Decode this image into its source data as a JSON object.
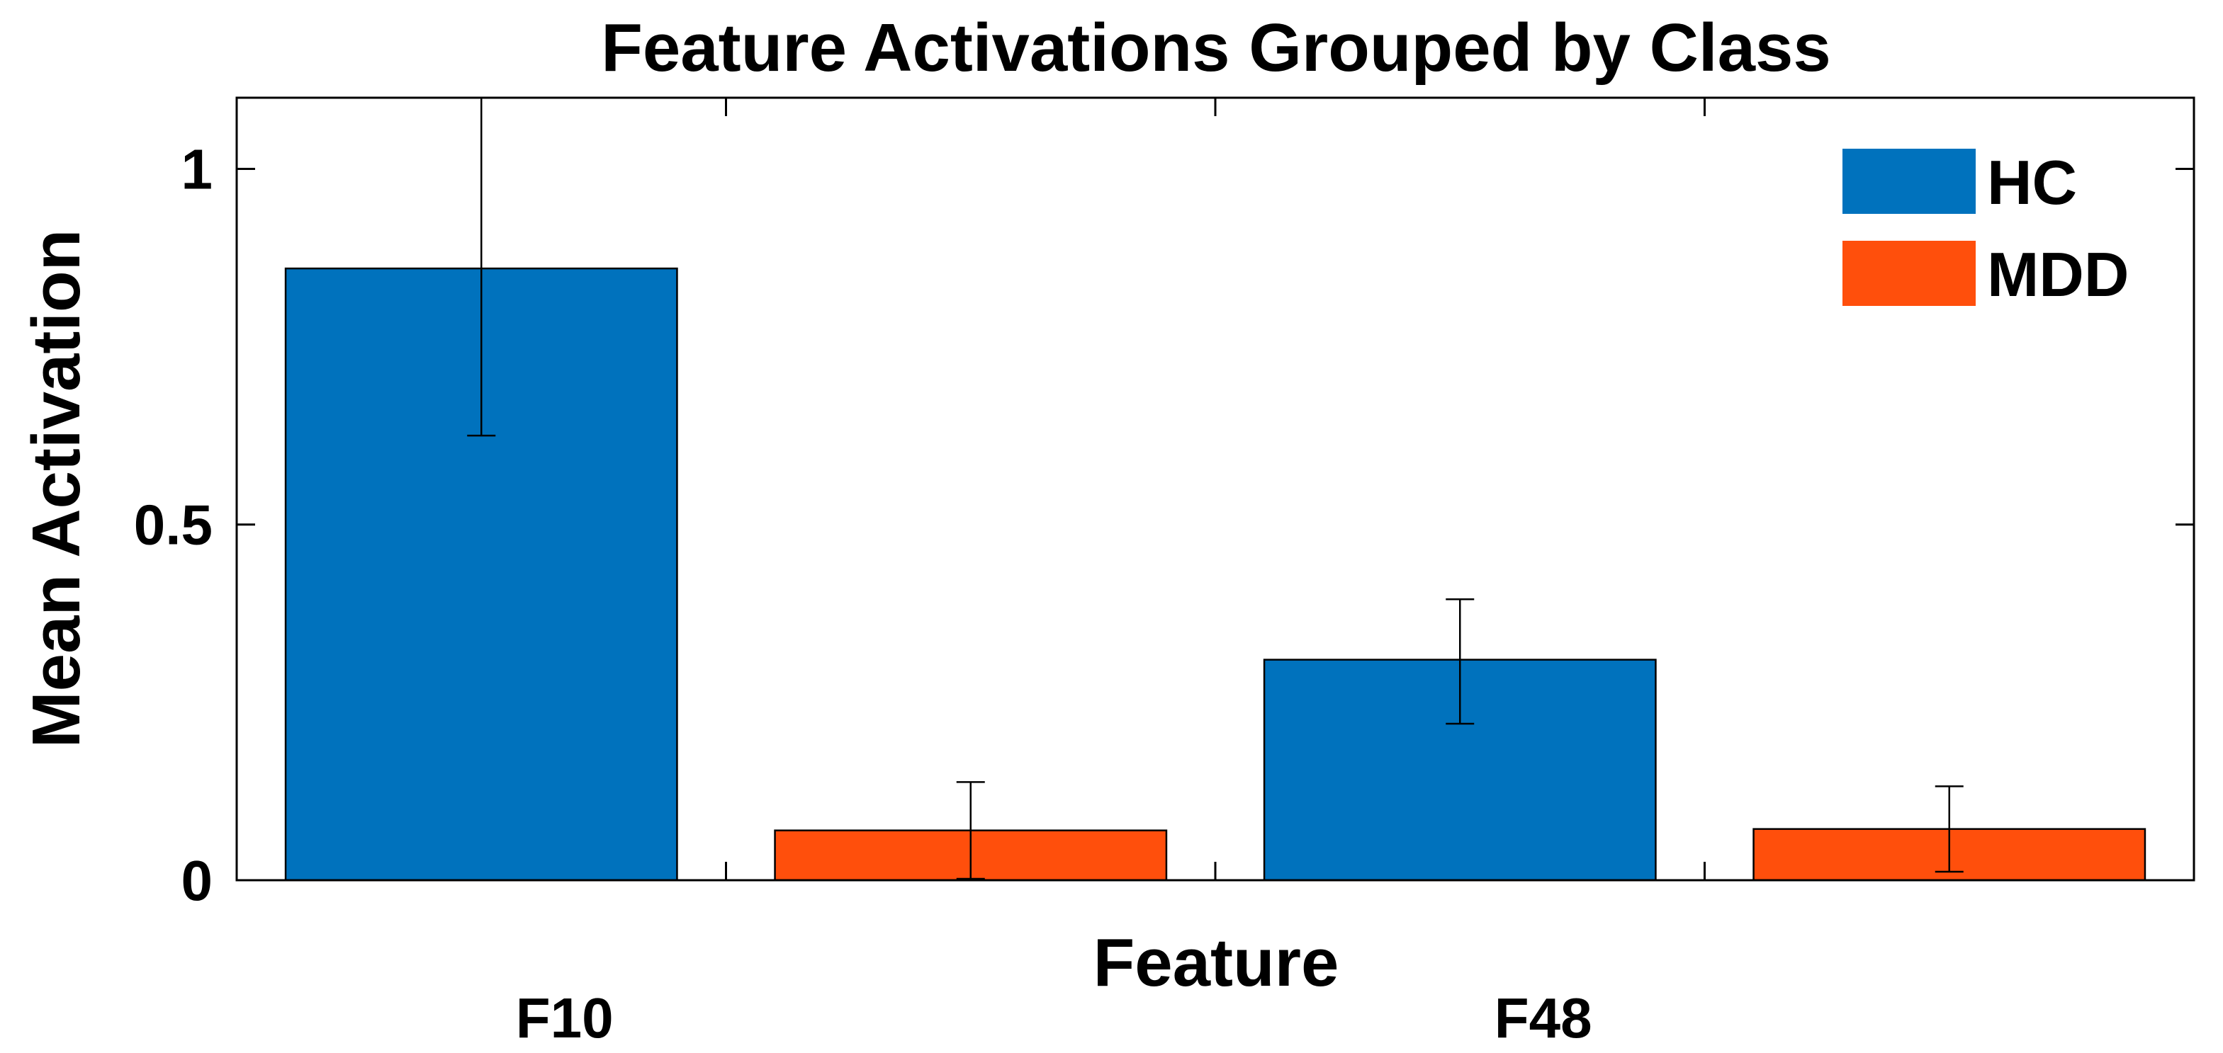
{
  "chart_data": {
    "type": "bar",
    "title": "Feature Activations Grouped by Class",
    "xlabel": "Feature",
    "ylabel": "Mean Activation",
    "categories": [
      "F10",
      "F48"
    ],
    "series": [
      {
        "name": "HC",
        "color": "#0072BD",
        "values": [
          0.86,
          0.31
        ],
        "error_low": [
          0.625,
          0.22
        ],
        "error_high": [
          1.1,
          0.395
        ]
      },
      {
        "name": "MDD",
        "color": "#FF4F0C",
        "values": [
          0.07,
          0.072
        ],
        "error_low": [
          0.002,
          0.012
        ],
        "error_high": [
          0.138,
          0.132
        ]
      }
    ],
    "ylim": [
      0,
      1.1
    ],
    "yticks": [
      0,
      0.5,
      1
    ],
    "ytick_labels": [
      "0",
      "0.5",
      "1"
    ],
    "grid": false,
    "legend_position": "top-right"
  }
}
